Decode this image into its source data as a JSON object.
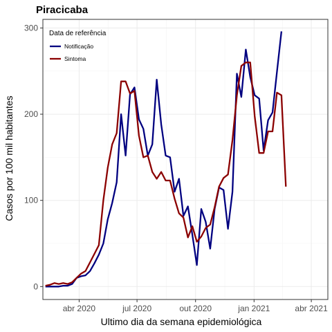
{
  "chart_data": {
    "type": "line",
    "title": "Piracicaba",
    "xlabel": "Ultimo dia da semana epidemiológica",
    "ylabel": "Casos por 100 mil habitantes",
    "ylim": [
      -15,
      310
    ],
    "xlim": [
      "2020-02-04",
      "2021-04-27"
    ],
    "x_ticks": [
      {
        "date": "2020-04-01",
        "label": "abr 2020"
      },
      {
        "date": "2020-07-01",
        "label": "jul 2020"
      },
      {
        "date": "2020-10-01",
        "label": "out 2020"
      },
      {
        "date": "2021-01-01",
        "label": "jan 2021"
      },
      {
        "date": "2021-04-01",
        "label": "abr 2021"
      }
    ],
    "y_ticks": [
      0,
      100,
      200,
      300
    ],
    "grid": true,
    "legend": {
      "title": "Data de referência",
      "position": "top-left"
    },
    "x": [
      "2020-02-08",
      "2020-02-15",
      "2020-02-22",
      "2020-02-29",
      "2020-03-07",
      "2020-03-14",
      "2020-03-21",
      "2020-03-28",
      "2020-04-04",
      "2020-04-11",
      "2020-04-18",
      "2020-04-25",
      "2020-05-02",
      "2020-05-09",
      "2020-05-16",
      "2020-05-23",
      "2020-05-30",
      "2020-06-06",
      "2020-06-13",
      "2020-06-20",
      "2020-06-27",
      "2020-07-04",
      "2020-07-11",
      "2020-07-18",
      "2020-07-25",
      "2020-08-01",
      "2020-08-08",
      "2020-08-15",
      "2020-08-22",
      "2020-08-29",
      "2020-09-05",
      "2020-09-12",
      "2020-09-19",
      "2020-09-26",
      "2020-10-03",
      "2020-10-10",
      "2020-10-17",
      "2020-10-24",
      "2020-10-31",
      "2020-11-07",
      "2020-11-14",
      "2020-11-21",
      "2020-11-28",
      "2020-12-05",
      "2020-12-12",
      "2020-12-19",
      "2020-12-26",
      "2021-01-02",
      "2021-01-09",
      "2021-01-16",
      "2021-01-23",
      "2021-01-30",
      "2021-02-06",
      "2021-02-13",
      "2021-02-20",
      "2021-02-27",
      "2021-03-06",
      "2021-03-13",
      "2021-03-20",
      "2021-03-27"
    ],
    "series": [
      {
        "name": "Notificação",
        "color": "#000080",
        "values": [
          0,
          0,
          0,
          0,
          1,
          1,
          3,
          10,
          12,
          13,
          18,
          27,
          37,
          50,
          78,
          97,
          121,
          200,
          152,
          223,
          231,
          194,
          183,
          152,
          165,
          240,
          188,
          152,
          150,
          110,
          125,
          82,
          93,
          60,
          25,
          90,
          75,
          44,
          90,
          115,
          112,
          67,
          110,
          247,
          220,
          275,
          243,
          222,
          218,
          158,
          193,
          202,
          249,
          296,
          null,
          null,
          null,
          null,
          null,
          null
        ]
      },
      {
        "name": "Sintoma",
        "color": "#8b0000",
        "values": [
          1,
          2,
          4,
          3,
          4,
          3,
          5,
          10,
          15,
          18,
          28,
          38,
          48,
          100,
          138,
          165,
          178,
          238,
          238,
          224,
          227,
          175,
          150,
          152,
          133,
          125,
          133,
          123,
          123,
          102,
          85,
          80,
          57,
          70,
          52,
          58,
          68,
          72,
          92,
          116,
          126,
          130,
          170,
          222,
          256,
          260,
          260,
          198,
          155,
          155,
          180,
          180,
          225,
          222,
          116,
          null,
          null,
          null,
          null,
          null
        ]
      }
    ]
  }
}
